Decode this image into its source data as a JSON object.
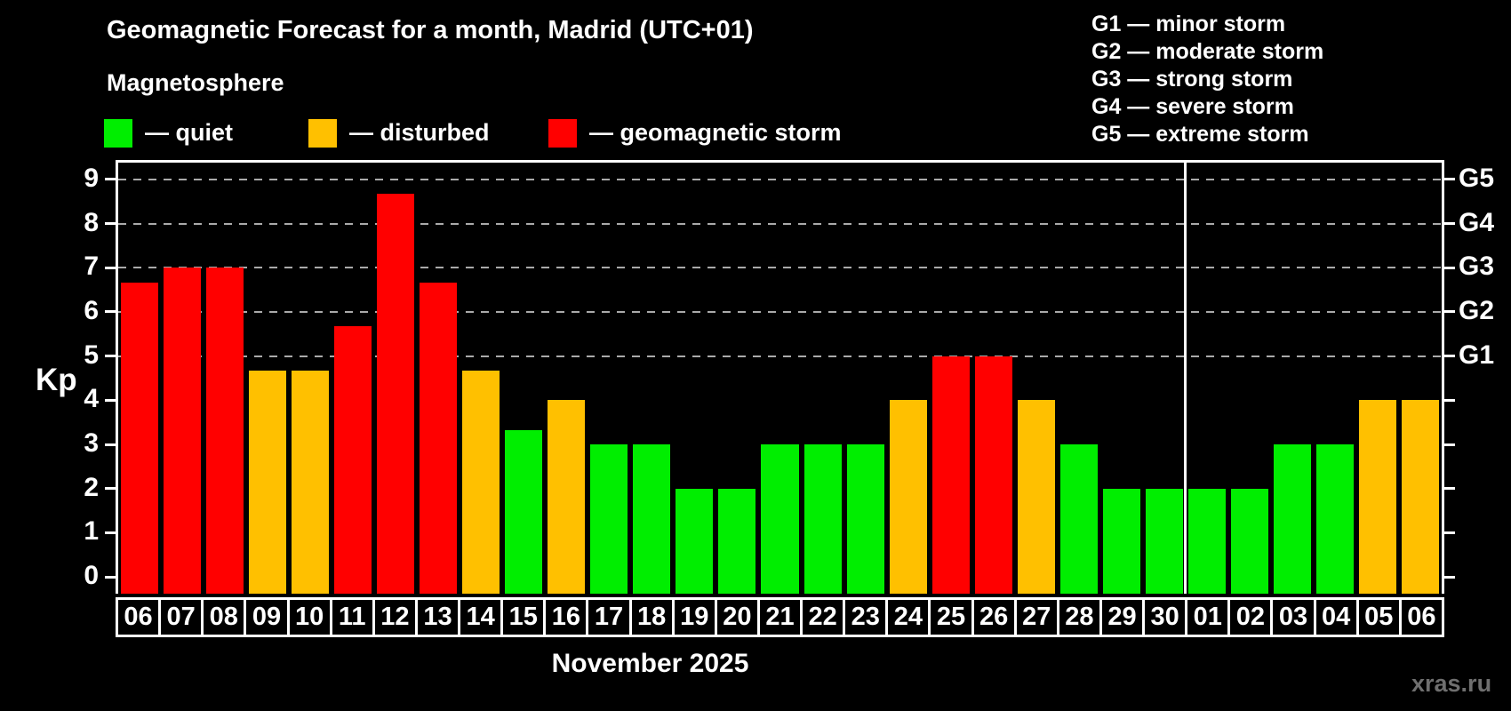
{
  "header": {
    "title": "Geomagnetic Forecast for a month, Madrid (UTC+01)",
    "subtitle": "Magnetosphere"
  },
  "legend": {
    "items": [
      {
        "key": "quiet",
        "label": "— quiet",
        "color": "#00ee00"
      },
      {
        "key": "disturbed",
        "label": "— disturbed",
        "color": "#ffc000"
      },
      {
        "key": "storm",
        "label": "— geomagnetic storm",
        "color": "#ff0000"
      }
    ]
  },
  "g_legend": {
    "lines": [
      {
        "text": "G1 — minor storm"
      },
      {
        "text": "G2 — moderate storm"
      },
      {
        "text": "G3 — strong storm"
      },
      {
        "text": "G4 — severe storm"
      },
      {
        "text": "G5 — extreme storm"
      }
    ]
  },
  "chart_data": {
    "type": "bar",
    "title": "Geomagnetic Forecast for a month, Madrid (UTC+01)",
    "ylabel": "Kp",
    "xlabel": "November 2025",
    "ylim": [
      0,
      9
    ],
    "axis_overshoot": 0.38,
    "yticks": [
      0,
      1,
      2,
      3,
      4,
      5,
      6,
      7,
      8,
      9
    ],
    "gridlines_at": [
      5,
      6,
      7,
      8,
      9
    ],
    "grid": "dashed horizontal at storm levels only",
    "legend_position": "top-left",
    "right_axis_labels": [
      {
        "kp": 5,
        "label": "G1"
      },
      {
        "kp": 6,
        "label": "G2"
      },
      {
        "kp": 7,
        "label": "G3"
      },
      {
        "kp": 8,
        "label": "G4"
      },
      {
        "kp": 9,
        "label": "G5"
      }
    ],
    "categories": [
      "06",
      "07",
      "08",
      "09",
      "10",
      "11",
      "12",
      "13",
      "14",
      "15",
      "16",
      "17",
      "18",
      "19",
      "20",
      "21",
      "22",
      "23",
      "24",
      "25",
      "26",
      "27",
      "28",
      "29",
      "30",
      "01",
      "02",
      "03",
      "04",
      "05",
      "06"
    ],
    "values": [
      6.67,
      7,
      7,
      4.67,
      4.67,
      5.67,
      8.67,
      6.67,
      4.67,
      3.33,
      4,
      3,
      3,
      2,
      2,
      3,
      3,
      3,
      4,
      5,
      5,
      4,
      3,
      2,
      2,
      2,
      2,
      3,
      3,
      4,
      4
    ],
    "statuses": [
      "storm",
      "storm",
      "storm",
      "disturbed",
      "disturbed",
      "storm",
      "storm",
      "storm",
      "disturbed",
      "quiet",
      "disturbed",
      "quiet",
      "quiet",
      "quiet",
      "quiet",
      "quiet",
      "quiet",
      "quiet",
      "disturbed",
      "storm",
      "storm",
      "disturbed",
      "quiet",
      "quiet",
      "quiet",
      "quiet",
      "quiet",
      "quiet",
      "quiet",
      "disturbed",
      "disturbed"
    ],
    "colors": {
      "quiet": "#00ee00",
      "disturbed": "#ffc000",
      "storm": "#ff0000"
    },
    "month_boundary_after_index": 24
  },
  "footer": {
    "month_label": "November 2025",
    "watermark": "xras.ru",
    "watermark_color": "#6f6f6f"
  }
}
